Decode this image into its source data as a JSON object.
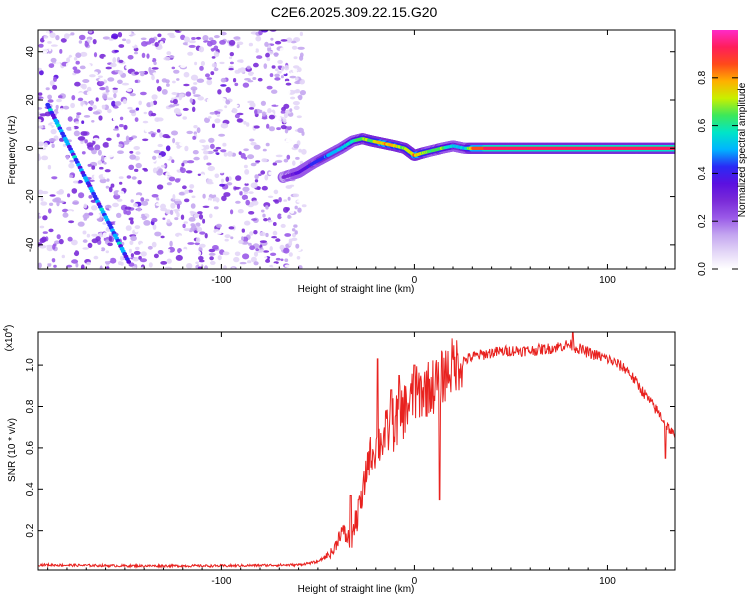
{
  "title": "C2E6.2025.309.22.15.G20",
  "colors": {
    "snr_line": "#e8221f",
    "colormap": [
      "#ffffff",
      "#e3d6f7",
      "#c4a6f0",
      "#9a5ae8",
      "#7a2bd8",
      "#5b10e0",
      "#2a2af5",
      "#00b4ff",
      "#00e5c8",
      "#3ce85a",
      "#c8f000",
      "#ffb000",
      "#ff4a1a",
      "#ff1e5a",
      "#ff2ac8"
    ]
  },
  "chart_data": [
    {
      "type": "heatmap",
      "name": "spectrogram",
      "xlabel": "Height of straight line (km)",
      "ylabel": "Frequency (Hz)",
      "xlim": [
        -195,
        135
      ],
      "ylim": [
        -50,
        49
      ],
      "xticks": [
        -100,
        0,
        100
      ],
      "yticks": [
        -40,
        -20,
        0,
        20,
        40
      ],
      "colorbar": {
        "label": "Normalized spectral amplitude",
        "range": [
          0,
          1
        ],
        "ticks": [
          "0.0",
          "0.2",
          "0.4",
          "0.6",
          "0.8"
        ]
      },
      "noise_region_x": [
        -195,
        -57
      ],
      "noise_streak": {
        "x": [
          -190,
          -148
        ],
        "y": [
          18,
          -47
        ]
      },
      "signal_track": {
        "x": [
          -68,
          -60,
          -52,
          -45,
          -38,
          -32,
          -27,
          -22,
          -16,
          -10,
          -5,
          0,
          4,
          9,
          14,
          20,
          26,
          30,
          40,
          60,
          80,
          100,
          120,
          135
        ],
        "y": [
          -12,
          -10,
          -6,
          -3,
          0,
          3,
          4,
          3,
          2,
          1,
          0,
          -3,
          -2,
          -1,
          0,
          1,
          0,
          0,
          0,
          0,
          0,
          0,
          0,
          0
        ],
        "amplitude": [
          0.3,
          0.35,
          0.45,
          0.5,
          0.55,
          0.6,
          0.7,
          0.72,
          0.85,
          0.8,
          0.7,
          0.85,
          0.75,
          0.65,
          0.7,
          0.55,
          0.55,
          0.85,
          0.92,
          0.92,
          0.92,
          0.92,
          0.92,
          0.92
        ]
      }
    },
    {
      "type": "line",
      "name": "snr",
      "xlabel": "Height of straight line (km)",
      "ylabel": "SNR (10 * v/v)",
      "y_multiplier": "(x10^4)",
      "y_multiplier_base": "(x10",
      "y_multiplier_exp": "4",
      "y_multiplier_close": ")",
      "xlim": [
        -195,
        135
      ],
      "ylim": [
        0.01,
        1.16
      ],
      "xticks": [
        -100,
        0,
        100
      ],
      "yticks": [
        0.2,
        0.4,
        0.6,
        0.8,
        1.0
      ],
      "ytick_labels": [
        "0.2",
        "0.4",
        "0.6",
        "0.8",
        "1.0"
      ],
      "envelope": {
        "x": [
          -195,
          -150,
          -100,
          -60,
          -50,
          -42,
          -38,
          -33,
          -30,
          -27,
          -24,
          -20,
          -16,
          -12,
          -8,
          -4,
          0,
          5,
          10,
          15,
          20,
          30,
          40,
          50,
          60,
          70,
          80,
          90,
          100,
          110,
          120,
          128,
          135
        ],
        "y": [
          0.035,
          0.03,
          0.03,
          0.035,
          0.05,
          0.1,
          0.2,
          0.15,
          0.25,
          0.35,
          0.55,
          0.6,
          0.65,
          0.7,
          0.75,
          0.8,
          0.85,
          0.88,
          0.9,
          0.95,
          1.0,
          1.04,
          1.06,
          1.07,
          1.07,
          1.08,
          1.1,
          1.06,
          1.03,
          0.98,
          0.85,
          0.75,
          0.65
        ]
      },
      "spikes": [
        {
          "x": -33,
          "y": 0.37
        },
        {
          "x": -29,
          "y": 0.35
        },
        {
          "x": -19,
          "y": 1.03
        },
        {
          "x": -12,
          "y": 0.88
        },
        {
          "x": -8,
          "y": 0.95
        },
        {
          "x": 0,
          "y": 1.0
        },
        {
          "x": 13,
          "y": 0.35
        },
        {
          "x": 82,
          "y": 1.16
        },
        {
          "x": 130,
          "y": 0.55
        }
      ]
    }
  ]
}
